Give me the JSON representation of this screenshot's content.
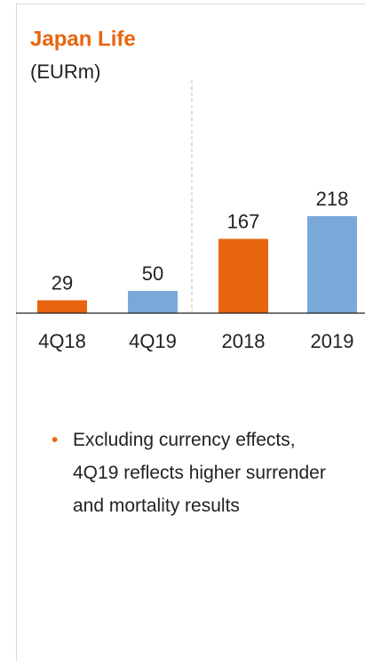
{
  "chart_data": {
    "type": "bar",
    "title": "Japan Life",
    "subtitle": "(EURm)",
    "categories": [
      "4Q18",
      "4Q19",
      "2018",
      "2019"
    ],
    "values": [
      29,
      50,
      167,
      218
    ],
    "colors": [
      "#e8650f",
      "#7aa8d8",
      "#e8650f",
      "#7aa8d8"
    ],
    "bullets": [
      "Excluding currency effects, 4Q19 reflects higher surrender and mortality results"
    ]
  }
}
